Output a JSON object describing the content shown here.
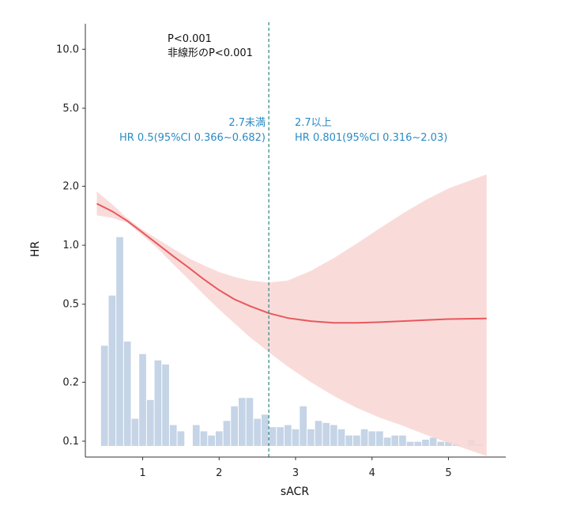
{
  "chart_data": {
    "type": "line",
    "xlabel": "sACR",
    "ylabel": "HR",
    "x_ticks": [
      1,
      2,
      3,
      4,
      5
    ],
    "y_ticks": [
      0.1,
      0.2,
      0.5,
      1.0,
      2.0,
      5.0,
      10.0
    ],
    "y_tick_labels": [
      "0.1",
      "0.2",
      "0.5",
      "1.0",
      "2.0",
      "5.0",
      "10.0"
    ],
    "xlim": [
      0.25,
      5.75
    ],
    "ylim": [
      0.083,
      13.5
    ],
    "yscale": "log",
    "cutoff": 2.65,
    "series": [
      {
        "name": "HR",
        "color": "#e8585c",
        "x": [
          0.4,
          0.6,
          0.8,
          1.0,
          1.2,
          1.4,
          1.6,
          1.8,
          2.0,
          2.2,
          2.4,
          2.65,
          2.9,
          3.2,
          3.5,
          3.8,
          4.1,
          4.4,
          4.7,
          5.0,
          5.5
        ],
        "y": [
          1.63,
          1.49,
          1.33,
          1.16,
          1.01,
          0.88,
          0.77,
          0.67,
          0.59,
          0.53,
          0.49,
          0.45,
          0.425,
          0.41,
          0.402,
          0.402,
          0.405,
          0.41,
          0.415,
          0.42,
          0.423
        ]
      }
    ],
    "ci_band": {
      "color": "#f8d6d4",
      "x": [
        0.4,
        0.6,
        0.8,
        1.0,
        1.2,
        1.4,
        1.6,
        1.8,
        2.0,
        2.2,
        2.4,
        2.65,
        2.9,
        3.2,
        3.5,
        3.8,
        4.1,
        4.4,
        4.7,
        5.0,
        5.5
      ],
      "lower": [
        1.42,
        1.38,
        1.3,
        1.12,
        0.96,
        0.8,
        0.67,
        0.56,
        0.47,
        0.4,
        0.34,
        0.285,
        0.24,
        0.2,
        0.17,
        0.148,
        0.132,
        0.12,
        0.108,
        0.098,
        0.084
      ],
      "upper": [
        1.88,
        1.62,
        1.37,
        1.2,
        1.07,
        0.96,
        0.86,
        0.79,
        0.73,
        0.69,
        0.66,
        0.645,
        0.66,
        0.74,
        0.86,
        1.02,
        1.22,
        1.45,
        1.7,
        1.95,
        2.3
      ]
    },
    "histogram": {
      "color": "#c5d4e6",
      "bin_width": 0.1,
      "bin_starts": [
        0.45,
        0.55,
        0.65,
        0.75,
        0.85,
        0.95,
        1.05,
        1.15,
        1.25,
        1.35,
        1.45,
        1.55,
        1.65,
        1.75,
        1.85,
        1.95,
        2.05,
        2.15,
        2.25,
        2.35,
        2.45,
        2.55,
        2.65,
        2.75,
        2.85,
        2.95,
        3.05,
        3.15,
        3.25,
        3.35,
        3.45,
        3.55,
        3.65,
        3.75,
        3.85,
        3.95,
        4.05,
        4.15,
        4.25,
        4.35,
        4.45,
        4.55,
        4.65,
        4.75,
        4.85,
        4.95,
        5.05,
        5.15,
        5.25,
        5.35
      ],
      "heights": [
        0.48,
        0.72,
        1.0,
        0.5,
        0.13,
        0.44,
        0.22,
        0.41,
        0.39,
        0.1,
        0.07,
        0,
        0.1,
        0.07,
        0.05,
        0.07,
        0.12,
        0.19,
        0.23,
        0.23,
        0.13,
        0.15,
        0.09,
        0.09,
        0.1,
        0.08,
        0.19,
        0.08,
        0.12,
        0.11,
        0.1,
        0.08,
        0.05,
        0.05,
        0.08,
        0.07,
        0.07,
        0.04,
        0.05,
        0.05,
        0.02,
        0.02,
        0.03,
        0.04,
        0.02,
        0.02,
        0.01,
        0,
        0.03,
        0.01
      ]
    },
    "annotations": {
      "p_overall": "P<0.001",
      "p_nonlinear": "非線形のP<0.001",
      "left_title": "2.7未満",
      "left_detail": "HR 0.5(95%CI 0.366~0.682)",
      "right_title": "2.7以上",
      "right_detail": "HR 0.801(95%CI 0.316~2.03)"
    },
    "colors": {
      "annotation_blue": "#2a8bc7",
      "cutoff_line": "#3a8d8a",
      "axis": "#333333"
    }
  }
}
